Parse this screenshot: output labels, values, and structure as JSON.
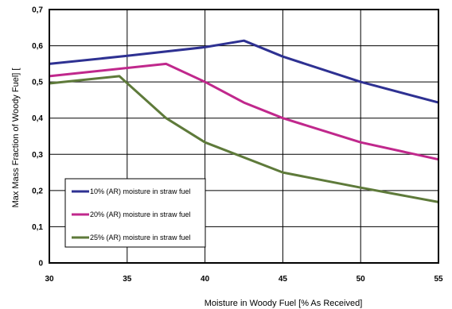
{
  "chart_data": {
    "type": "line",
    "xlabel": "Moisture in Woody Fuel [% As Received]",
    "ylabel": "Max Mass Fraction of Woody Fuel] [",
    "xlim": [
      30,
      55
    ],
    "ylim": [
      0,
      0.7
    ],
    "x_ticks": [
      "30",
      "35",
      "40",
      "45",
      "50",
      "55"
    ],
    "y_ticks": [
      "0",
      "0,1",
      "0,2",
      "0,3",
      "0,4",
      "0,5",
      "0,6",
      "0,7"
    ],
    "grid": true,
    "legend_position": "bottom-left",
    "series": [
      {
        "name": "10% (AR) moisture in straw fuel",
        "color": "#2e3192",
        "x": [
          30,
          35,
          40,
          42.5,
          45,
          50,
          55
        ],
        "y": [
          0.55,
          0.572,
          0.596,
          0.614,
          0.57,
          0.5,
          0.443
        ]
      },
      {
        "name": "20% (AR) moisture in straw fuel",
        "color": "#c0288c",
        "x": [
          30,
          37.5,
          40,
          42.5,
          45,
          50,
          55
        ],
        "y": [
          0.516,
          0.55,
          0.5,
          0.443,
          0.4,
          0.333,
          0.286
        ]
      },
      {
        "name": "25% (AR) moisture in straw fuel",
        "color": "#5e7a3a",
        "x": [
          30,
          34.5,
          37.5,
          40,
          45,
          50,
          55
        ],
        "y": [
          0.496,
          0.516,
          0.4,
          0.333,
          0.25,
          0.208,
          0.168
        ]
      }
    ]
  }
}
